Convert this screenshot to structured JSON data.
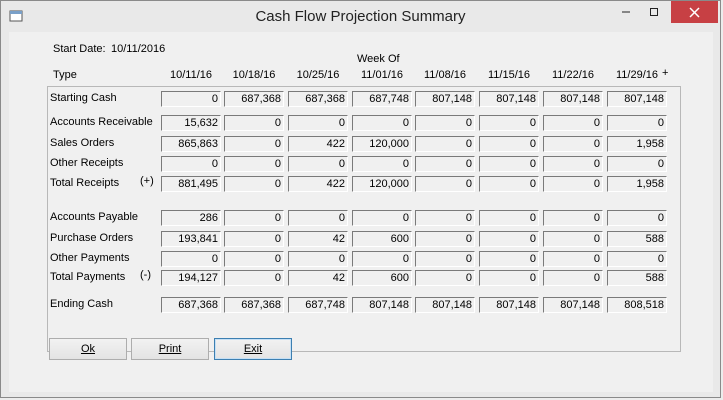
{
  "window": {
    "title": "Cash Flow Projection Summary",
    "controls": {
      "minimize": "–",
      "maximize": "☐",
      "close": "✕"
    }
  },
  "start_date": {
    "label": "Start Date:",
    "value": "10/11/2016"
  },
  "header": {
    "week_of": "Week Of",
    "type_label": "Type",
    "plus": "+",
    "weeks": [
      "10/11/16",
      "10/18/16",
      "10/25/16",
      "11/01/16",
      "11/08/16",
      "11/15/16",
      "11/22/16",
      "11/29/16"
    ]
  },
  "rows": [
    {
      "label": "Starting Cash",
      "sign": "",
      "values": [
        "0",
        "687,368",
        "687,368",
        "687,748",
        "807,148",
        "807,148",
        "807,148",
        "807,148"
      ]
    },
    {
      "label": "Accounts Receivable",
      "sign": "",
      "values": [
        "15,632",
        "0",
        "0",
        "0",
        "0",
        "0",
        "0",
        "0"
      ]
    },
    {
      "label": "Sales Orders",
      "sign": "",
      "values": [
        "865,863",
        "0",
        "422",
        "120,000",
        "0",
        "0",
        "0",
        "1,958"
      ]
    },
    {
      "label": "Other Receipts",
      "sign": "",
      "values": [
        "0",
        "0",
        "0",
        "0",
        "0",
        "0",
        "0",
        "0"
      ]
    },
    {
      "label": "Total Receipts",
      "sign": "(+)",
      "values": [
        "881,495",
        "0",
        "422",
        "120,000",
        "0",
        "0",
        "0",
        "1,958"
      ]
    },
    {
      "label": "Accounts Payable",
      "sign": "",
      "values": [
        "286",
        "0",
        "0",
        "0",
        "0",
        "0",
        "0",
        "0"
      ]
    },
    {
      "label": "Purchase Orders",
      "sign": "",
      "values": [
        "193,841",
        "0",
        "42",
        "600",
        "0",
        "0",
        "0",
        "588"
      ]
    },
    {
      "label": "Other Payments",
      "sign": "",
      "values": [
        "0",
        "0",
        "0",
        "0",
        "0",
        "0",
        "0",
        "0"
      ]
    },
    {
      "label": "Total Payments",
      "sign": "(-)",
      "values": [
        "194,127",
        "0",
        "42",
        "600",
        "0",
        "0",
        "0",
        "588"
      ]
    },
    {
      "label": "Ending Cash",
      "sign": "",
      "values": [
        "687,368",
        "687,368",
        "687,748",
        "807,148",
        "807,148",
        "807,148",
        "807,148",
        "808,518"
      ]
    }
  ],
  "buttons": {
    "ok": "Ok",
    "print": "Print",
    "exit": "Exit"
  }
}
